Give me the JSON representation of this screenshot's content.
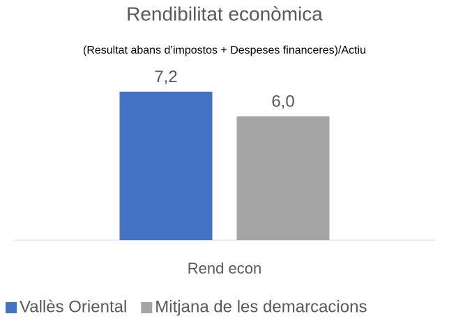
{
  "chart_data": {
    "type": "bar",
    "title": "Rendibilitat econòmica",
    "subtitle": "(Resultat abans d’impostos + Despeses financeres)/Actiu",
    "categories": [
      "Rend econ"
    ],
    "series": [
      {
        "name": "Vallès Oriental",
        "color": "#4472c4",
        "values": [
          7.2
        ],
        "value_labels": [
          "7,2"
        ]
      },
      {
        "name": "Mitjana de les demarcacions",
        "color": "#a5a5a5",
        "values": [
          6.0
        ],
        "value_labels": [
          "6,0"
        ]
      }
    ],
    "ylim": [
      0,
      8
    ],
    "legend": "bottom"
  }
}
